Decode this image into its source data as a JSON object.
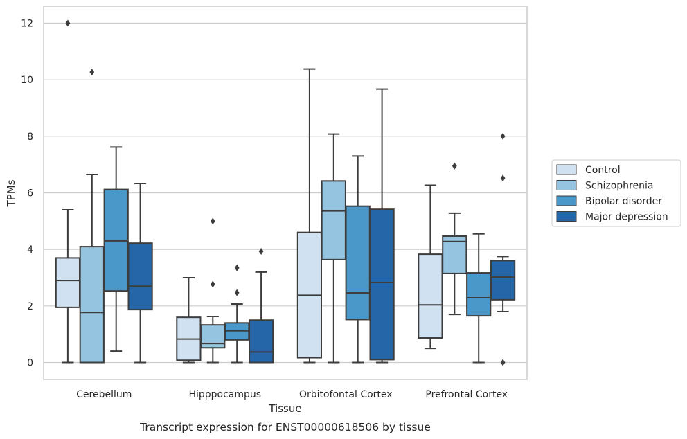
{
  "chart_data": {
    "type": "box",
    "xlabel": "Tissue",
    "ylabel": "TPMs",
    "caption": "Transcript expression for ENST00000618506 by tissue",
    "ylim": [
      -0.6,
      12.6
    ],
    "yticks": [
      0,
      2,
      4,
      6,
      8,
      10,
      12
    ],
    "grid": "horizontal",
    "legend_position": "right",
    "categories": [
      "Cerebellum",
      "Hipppocampus",
      "Orbitofontal Cortex",
      "Prefrontal Cortex"
    ],
    "series": [
      {
        "name": "Control",
        "color": "#d0e1f2",
        "boxes": [
          {
            "whislo": 0.0,
            "q1": 1.95,
            "med": 2.9,
            "q3": 3.7,
            "whishi": 5.4,
            "fliers": [
              12.0
            ]
          },
          {
            "whislo": 0.0,
            "q1": 0.08,
            "med": 0.83,
            "q3": 1.6,
            "whishi": 3.0,
            "fliers": []
          },
          {
            "whislo": 0.0,
            "q1": 0.17,
            "med": 2.38,
            "q3": 4.6,
            "whishi": 10.38,
            "fliers": []
          },
          {
            "whislo": 0.5,
            "q1": 0.87,
            "med": 2.04,
            "q3": 3.83,
            "whishi": 6.27,
            "fliers": []
          }
        ]
      },
      {
        "name": "Schizophrenia",
        "color": "#94c4df",
        "boxes": [
          {
            "whislo": 0.0,
            "q1": 0.0,
            "med": 1.77,
            "q3": 4.1,
            "whishi": 6.65,
            "fliers": [
              10.27
            ]
          },
          {
            "whislo": 0.0,
            "q1": 0.52,
            "med": 0.67,
            "q3": 1.33,
            "whishi": 1.63,
            "fliers": [
              5.0,
              2.77
            ]
          },
          {
            "whislo": 0.0,
            "q1": 3.64,
            "med": 5.36,
            "q3": 6.42,
            "whishi": 8.08,
            "fliers": []
          },
          {
            "whislo": 1.7,
            "q1": 3.15,
            "med": 4.28,
            "q3": 4.47,
            "whishi": 5.28,
            "fliers": [
              6.95
            ]
          }
        ]
      },
      {
        "name": "Bipolar disorder",
        "color": "#4a98c9",
        "boxes": [
          {
            "whislo": 0.4,
            "q1": 2.53,
            "med": 4.3,
            "q3": 6.12,
            "whishi": 7.62,
            "fliers": []
          },
          {
            "whislo": 0.0,
            "q1": 0.8,
            "med": 1.12,
            "q3": 1.4,
            "whishi": 2.07,
            "fliers": [
              3.35,
              2.47
            ]
          },
          {
            "whislo": 0.0,
            "q1": 1.52,
            "med": 2.46,
            "q3": 5.53,
            "whishi": 7.3,
            "fliers": []
          },
          {
            "whislo": 0.0,
            "q1": 1.65,
            "med": 2.29,
            "q3": 3.17,
            "whishi": 4.55,
            "fliers": []
          }
        ]
      },
      {
        "name": "Major depression",
        "color": "#2566a8",
        "boxes": [
          {
            "whislo": 0.0,
            "q1": 1.87,
            "med": 2.7,
            "q3": 4.22,
            "whishi": 6.33,
            "fliers": []
          },
          {
            "whislo": 0.0,
            "q1": 0.0,
            "med": 0.37,
            "q3": 1.5,
            "whishi": 3.2,
            "fliers": [
              3.93
            ]
          },
          {
            "whislo": 0.0,
            "q1": 0.1,
            "med": 2.83,
            "q3": 5.42,
            "whishi": 9.67,
            "fliers": []
          },
          {
            "whislo": 1.8,
            "q1": 2.22,
            "med": 3.02,
            "q3": 3.6,
            "whishi": 3.75,
            "fliers": [
              8.0,
              6.52,
              0.0
            ]
          }
        ]
      }
    ]
  }
}
